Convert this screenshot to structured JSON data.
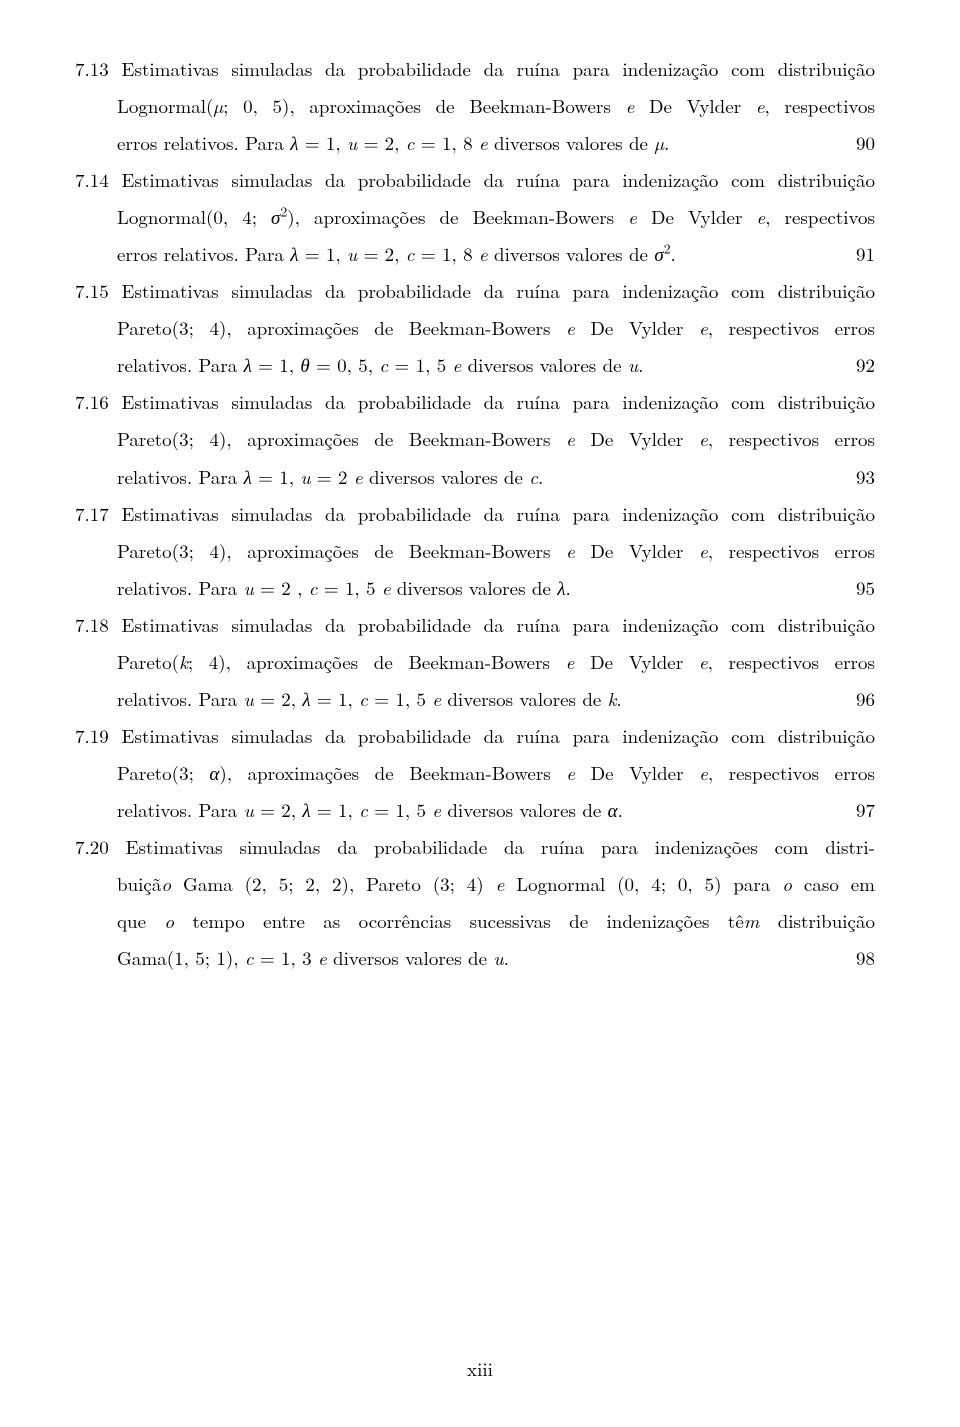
{
  "entries": [
    {
      "num": "7.13",
      "head": "Estimativas simuladas da probabilidade da ruína para indenização com distribuição",
      "body_justified": [
        "Lognormal(µ; 0, 5), aproximações de Beekman-Bowers e De Vylder e, respectivos"
      ],
      "last": "erros relativos. Para λ = 1, u = 2, c = 1, 8 e diversos valores de µ.",
      "page": "90"
    },
    {
      "num": "7.14",
      "head": "Estimativas simuladas da probabilidade da ruína para indenização com distribuição",
      "body_justified": [
        "Lognormal(0, 4; σ²), aproximações de Beekman-Bowers e De Vylder e, respectivos"
      ],
      "last": "erros relativos. Para λ = 1, u = 2, c = 1, 8 e diversos valores de σ².",
      "page": "91"
    },
    {
      "num": "7.15",
      "head": "Estimativas simuladas da probabilidade da ruína para indenização com distribuição",
      "body_justified": [
        "Pareto(3; 4), aproximações de Beekman-Bowers e De Vylder e, respectivos erros"
      ],
      "last": "relativos. Para λ = 1, θ = 0, 5, c = 1, 5 e diversos valores de u.",
      "page": "92"
    },
    {
      "num": "7.16",
      "head": "Estimativas simuladas da probabilidade da ruína para indenização com distribuição",
      "body_justified": [
        "Pareto(3; 4), aproximações de Beekman-Bowers e De Vylder e, respectivos erros"
      ],
      "last": "relativos. Para λ = 1, u = 2 e diversos valores de c.",
      "page": "93"
    },
    {
      "num": "7.17",
      "head": "Estimativas simuladas da probabilidade da ruína para indenização com distribuição",
      "body_justified": [
        "Pareto(3; 4), aproximações de Beekman-Bowers e De Vylder e, respectivos erros"
      ],
      "last": "relativos. Para u = 2 , c = 1, 5 e diversos valores de λ.",
      "page": "95"
    },
    {
      "num": "7.18",
      "head": "Estimativas simuladas da probabilidade da ruína para indenização com distribuição",
      "body_justified": [
        "Pareto(k; 4), aproximações de Beekman-Bowers e De Vylder e, respectivos erros"
      ],
      "last": "relativos. Para u = 2, λ = 1, c = 1, 5 e diversos valores de k.",
      "page": "96"
    },
    {
      "num": "7.19",
      "head": "Estimativas simuladas da probabilidade da ruína para indenização com distribuição",
      "body_justified": [
        "Pareto(3; α), aproximações de Beekman-Bowers e De Vylder e, respectivos erros"
      ],
      "last": "relativos. Para u = 2, λ = 1, c = 1, 5 e diversos valores de α.",
      "page": "97"
    },
    {
      "num": "7.20",
      "head": "Estimativas simuladas da probabilidade da ruína para indenizações com distri-",
      "body_justified": [
        "buição Gama (2, 5; 2, 2), Pareto (3; 4) e Lognormal (0, 4; 0, 5) para o caso em",
        "que o tempo entre as ocorrências sucessivas de indenizações têm distribuição"
      ],
      "last": "Gama(1, 5; 1), c = 1, 3 e diversos valores de u.",
      "page": "98"
    }
  ],
  "footer": "xiii"
}
